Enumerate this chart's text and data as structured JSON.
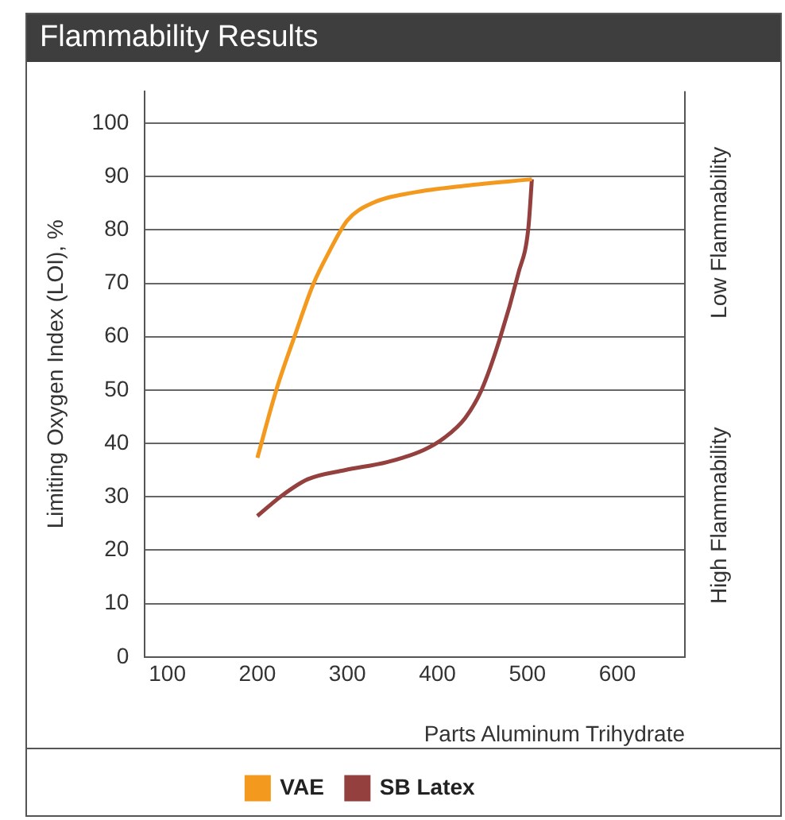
{
  "chart_data": {
    "type": "line",
    "title": "Flammability Results",
    "xlabel": "Parts Aluminum Trihydrate",
    "ylabel": "Limiting Oxygen Index (LOI), %",
    "annotations": [
      "Low Flammability",
      "High Flammability"
    ],
    "series": [
      {
        "name": "VAE",
        "color": "#f39a1e",
        "x": [
          200,
          221,
          242,
          262,
          280,
          300,
          326,
          373,
          431,
          505
        ],
        "values": [
          37.3,
          50,
          60.4,
          69.8,
          76,
          81.8,
          84.9,
          87,
          88.3,
          89.5
        ]
      },
      {
        "name": "SB Latex",
        "color": "#94403f",
        "x": [
          200,
          227,
          256,
          297,
          344,
          385,
          408,
          431,
          449,
          469,
          490,
          501,
          505
        ],
        "values": [
          26.4,
          30.2,
          33.3,
          35,
          36.5,
          38.8,
          41.1,
          44.8,
          50,
          59.4,
          71.9,
          80.2,
          89.5
        ]
      }
    ],
    "xlim": [
      75,
      675
    ],
    "xticks": [
      100,
      200,
      300,
      400,
      500,
      600
    ],
    "ylim": [
      0,
      106
    ],
    "yticks": [
      0,
      10,
      20,
      30,
      40,
      50,
      60,
      70,
      80,
      90,
      100
    ],
    "grid": "y",
    "legend": "bottom",
    "marker": "none",
    "line_style": "solid"
  }
}
